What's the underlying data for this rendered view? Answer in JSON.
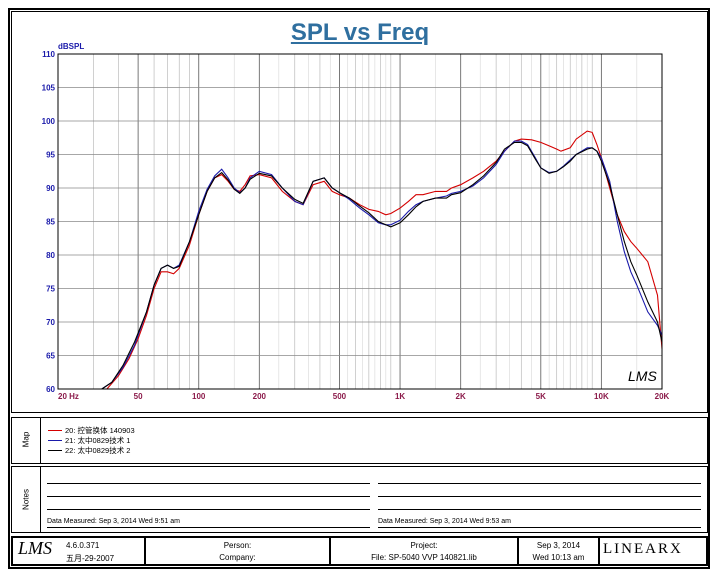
{
  "chart_data": {
    "type": "line",
    "title": "SPL vs Freq",
    "ylabel": "dBSPL",
    "xlabel": "",
    "x_scale": "log",
    "xlim": [
      20,
      20000
    ],
    "ylim": [
      60,
      110
    ],
    "yticks": [
      "110",
      "105",
      "100",
      "95",
      "90",
      "85",
      "80",
      "75",
      "70",
      "65",
      "60"
    ],
    "xtick_labels": [
      {
        "v": 20,
        "t": "20 Hz"
      },
      {
        "v": 50,
        "t": "50"
      },
      {
        "v": 100,
        "t": "100"
      },
      {
        "v": 200,
        "t": "200"
      },
      {
        "v": 500,
        "t": "500"
      },
      {
        "v": 1000,
        "t": "1K"
      },
      {
        "v": 2000,
        "t": "2K"
      },
      {
        "v": 5000,
        "t": "5K"
      },
      {
        "v": 10000,
        "t": "10K"
      },
      {
        "v": 20000,
        "t": "20K"
      }
    ],
    "grid": true,
    "series": [
      {
        "name": "20: 控管换体 140903",
        "color": "#d40000",
        "points": [
          [
            35,
            60
          ],
          [
            40,
            62
          ],
          [
            45,
            64.5
          ],
          [
            50,
            67.5
          ],
          [
            55,
            71
          ],
          [
            60,
            75
          ],
          [
            65,
            77.5
          ],
          [
            70,
            77.5
          ],
          [
            75,
            77.2
          ],
          [
            80,
            78
          ],
          [
            90,
            81.5
          ],
          [
            100,
            86
          ],
          [
            110,
            89.5
          ],
          [
            120,
            91.5
          ],
          [
            130,
            92
          ],
          [
            140,
            91
          ],
          [
            150,
            89.8
          ],
          [
            160,
            89.5
          ],
          [
            170,
            90.5
          ],
          [
            180,
            91.8
          ],
          [
            200,
            92
          ],
          [
            230,
            91.5
          ],
          [
            260,
            89.5
          ],
          [
            300,
            88
          ],
          [
            330,
            87.5
          ],
          [
            370,
            90.5
          ],
          [
            420,
            91
          ],
          [
            460,
            89.5
          ],
          [
            500,
            89
          ],
          [
            560,
            88.5
          ],
          [
            630,
            87.5
          ],
          [
            700,
            86.8
          ],
          [
            780,
            86.5
          ],
          [
            850,
            86
          ],
          [
            900,
            86.2
          ],
          [
            1000,
            87
          ],
          [
            1100,
            88
          ],
          [
            1200,
            89
          ],
          [
            1300,
            89
          ],
          [
            1500,
            89.5
          ],
          [
            1700,
            89.5
          ],
          [
            1800,
            90
          ],
          [
            2000,
            90.5
          ],
          [
            2300,
            91.5
          ],
          [
            2600,
            92.5
          ],
          [
            3000,
            94
          ],
          [
            3300,
            95.5
          ],
          [
            3700,
            97
          ],
          [
            4000,
            97.3
          ],
          [
            4500,
            97.2
          ],
          [
            5000,
            96.8
          ],
          [
            5600,
            96.2
          ],
          [
            6000,
            95.8
          ],
          [
            6300,
            95.5
          ],
          [
            7000,
            96
          ],
          [
            7500,
            97.3
          ],
          [
            8500,
            98.5
          ],
          [
            9000,
            98.3
          ],
          [
            9500,
            96.5
          ],
          [
            10000,
            94.5
          ],
          [
            11000,
            90
          ],
          [
            12000,
            86
          ],
          [
            13000,
            83.5
          ],
          [
            14000,
            82
          ],
          [
            15000,
            81
          ],
          [
            17000,
            79
          ],
          [
            19000,
            74
          ],
          [
            20000,
            66
          ]
        ]
      },
      {
        "name": "21: 太中0829技术 1",
        "color": "#1a1aaa",
        "points": [
          [
            33,
            60
          ],
          [
            37,
            61
          ],
          [
            42,
            63.2
          ],
          [
            48,
            66.5
          ],
          [
            55,
            71.5
          ],
          [
            60,
            75.5
          ],
          [
            65,
            78
          ],
          [
            70,
            78.5
          ],
          [
            75,
            78
          ],
          [
            80,
            78.5
          ],
          [
            90,
            82
          ],
          [
            100,
            86.5
          ],
          [
            110,
            89.8
          ],
          [
            120,
            91.8
          ],
          [
            130,
            92.8
          ],
          [
            140,
            91.5
          ],
          [
            150,
            90
          ],
          [
            160,
            89.3
          ],
          [
            170,
            90
          ],
          [
            180,
            91.5
          ],
          [
            200,
            92.5
          ],
          [
            230,
            92
          ],
          [
            260,
            90
          ],
          [
            300,
            88
          ],
          [
            330,
            87.5
          ],
          [
            370,
            91
          ],
          [
            420,
            91.5
          ],
          [
            460,
            90
          ],
          [
            500,
            89.3
          ],
          [
            560,
            88.3
          ],
          [
            630,
            87
          ],
          [
            700,
            86
          ],
          [
            780,
            84.8
          ],
          [
            850,
            84.5
          ],
          [
            900,
            84.5
          ],
          [
            1000,
            85.2
          ],
          [
            1100,
            86.5
          ],
          [
            1200,
            87.5
          ],
          [
            1300,
            88
          ],
          [
            1500,
            88.5
          ],
          [
            1700,
            88.8
          ],
          [
            1800,
            89.2
          ],
          [
            2000,
            89.5
          ],
          [
            2300,
            90.3
          ],
          [
            2600,
            91.5
          ],
          [
            3000,
            93.5
          ],
          [
            3300,
            95.5
          ],
          [
            3700,
            97
          ],
          [
            4000,
            97
          ],
          [
            4300,
            96.5
          ],
          [
            4700,
            94.5
          ],
          [
            5000,
            93
          ],
          [
            5500,
            92.3
          ],
          [
            6000,
            92.5
          ],
          [
            6500,
            93.3
          ],
          [
            7000,
            94.2
          ],
          [
            7500,
            95
          ],
          [
            8500,
            96
          ],
          [
            9000,
            96
          ],
          [
            9500,
            95.5
          ],
          [
            10000,
            94.5
          ],
          [
            11000,
            91
          ],
          [
            12000,
            85
          ],
          [
            13000,
            80.5
          ],
          [
            14000,
            77.5
          ],
          [
            15000,
            75.5
          ],
          [
            17000,
            71.5
          ],
          [
            19000,
            69.5
          ],
          [
            20000,
            68
          ]
        ]
      },
      {
        "name": "22: 太中0829技术 2",
        "color": "#000000",
        "points": [
          [
            33,
            60
          ],
          [
            37,
            61
          ],
          [
            42,
            63.5
          ],
          [
            48,
            67
          ],
          [
            55,
            71.5
          ],
          [
            60,
            75.5
          ],
          [
            65,
            78
          ],
          [
            70,
            78.5
          ],
          [
            75,
            78
          ],
          [
            80,
            78.3
          ],
          [
            90,
            82
          ],
          [
            100,
            86
          ],
          [
            110,
            89.5
          ],
          [
            120,
            91.5
          ],
          [
            130,
            92.3
          ],
          [
            140,
            91.2
          ],
          [
            150,
            89.8
          ],
          [
            160,
            89.2
          ],
          [
            170,
            90
          ],
          [
            180,
            91.3
          ],
          [
            200,
            92.2
          ],
          [
            230,
            91.8
          ],
          [
            260,
            90
          ],
          [
            300,
            88.3
          ],
          [
            330,
            87.7
          ],
          [
            370,
            91
          ],
          [
            420,
            91.5
          ],
          [
            460,
            90
          ],
          [
            500,
            89.3
          ],
          [
            560,
            88.5
          ],
          [
            630,
            87.3
          ],
          [
            700,
            86.3
          ],
          [
            780,
            85
          ],
          [
            850,
            84.5
          ],
          [
            900,
            84.2
          ],
          [
            1000,
            84.8
          ],
          [
            1100,
            86
          ],
          [
            1200,
            87.2
          ],
          [
            1300,
            88
          ],
          [
            1500,
            88.5
          ],
          [
            1700,
            88.5
          ],
          [
            1800,
            89
          ],
          [
            2000,
            89.3
          ],
          [
            2300,
            90.5
          ],
          [
            2600,
            91.8
          ],
          [
            3000,
            93.8
          ],
          [
            3300,
            95.8
          ],
          [
            3700,
            96.8
          ],
          [
            4000,
            96.8
          ],
          [
            4300,
            96.3
          ],
          [
            4700,
            94.3
          ],
          [
            5000,
            93
          ],
          [
            5500,
            92.2
          ],
          [
            6000,
            92.5
          ],
          [
            6500,
            93.2
          ],
          [
            7000,
            94
          ],
          [
            7500,
            95
          ],
          [
            8500,
            95.8
          ],
          [
            9000,
            96
          ],
          [
            9500,
            95.5
          ],
          [
            10000,
            94
          ],
          [
            11000,
            90.5
          ],
          [
            12000,
            86
          ],
          [
            13000,
            82
          ],
          [
            14000,
            79
          ],
          [
            15000,
            77
          ],
          [
            17000,
            73
          ],
          [
            19000,
            70
          ],
          [
            20000,
            67
          ]
        ]
      }
    ]
  },
  "map": {
    "label": "Map",
    "entries": [
      {
        "text": "20: 控管换体 140903",
        "color": "#d40000"
      },
      {
        "text": "21: 太中0829技术 1",
        "color": "#1a1aaa"
      },
      {
        "text": "22: 太中0829技术 2",
        "color": "#000000"
      }
    ]
  },
  "notes": {
    "label": "Notes",
    "left_measured": "Data Measured:  Sep  3, 2014   Wed  9:51 am",
    "right_measured": "Data Measured:  Sep  3, 2014   Wed  9:53 am"
  },
  "footer": {
    "logo": "LMS",
    "version": "4.6.0.371",
    "date_build": "五月-29-2007",
    "person_label": "Person:",
    "company_label": "Company:",
    "project_label": "Project:",
    "file_label": "File:  SP-5040 VVP 140821.lib",
    "date": "Sep  3, 2014",
    "time": "Wed 10:13 am",
    "brand": "LINEARX"
  },
  "watermark": "LMS"
}
